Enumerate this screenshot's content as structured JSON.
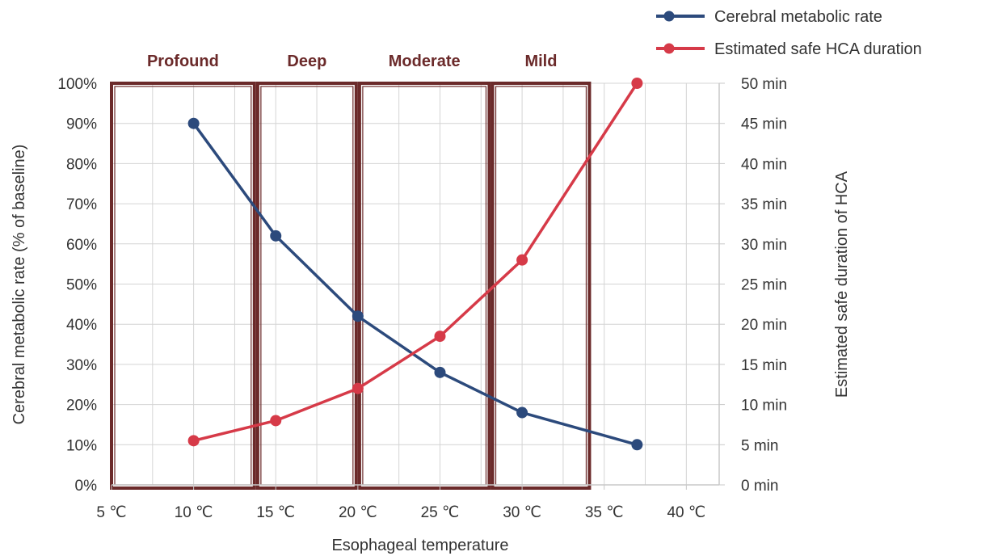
{
  "chart_data": {
    "type": "line",
    "xlabel": "Esophageal temperature",
    "ylabel": "Cerebral metabolic rate (% of baseline)",
    "y2label": "Estimated safe duration of HCA",
    "xlim": [
      5,
      42
    ],
    "ylim": [
      0,
      100
    ],
    "y2lim": [
      0,
      50
    ],
    "x_ticks": [
      5,
      10,
      15,
      20,
      25,
      30,
      35,
      40
    ],
    "x_tick_labels": [
      "5 ℃",
      "10 ℃",
      "15 ℃",
      "20 ℃",
      "25 ℃",
      "30 ℃",
      "35 ℃",
      "40 ℃"
    ],
    "y_ticks": [
      0,
      10,
      20,
      30,
      40,
      50,
      60,
      70,
      80,
      90,
      100
    ],
    "y_tick_labels": [
      "0%",
      "10%",
      "20%",
      "30%",
      "40%",
      "50%",
      "60%",
      "70%",
      "80%",
      "90%",
      "100%"
    ],
    "y2_ticks": [
      0,
      5,
      10,
      15,
      20,
      25,
      30,
      35,
      40,
      45,
      50
    ],
    "y2_tick_labels": [
      "0 min",
      "5 min",
      "10 min",
      "15 min",
      "20 min",
      "25 min",
      "30 min",
      "35 min",
      "40 min",
      "45 min",
      "50 min"
    ],
    "grid": true,
    "legend": "top-right",
    "series": [
      {
        "name": "Cerebral metabolic rate",
        "axis": "left",
        "color": "#2c4a7c",
        "x": [
          10,
          15,
          20,
          25,
          30,
          37
        ],
        "y": [
          90,
          62,
          42,
          28,
          18,
          10
        ]
      },
      {
        "name": "Estimated safe HCA duration",
        "axis": "right",
        "color": "#d63a48",
        "x": [
          10,
          15,
          20,
          25,
          30,
          37
        ],
        "y": [
          5.5,
          8,
          12,
          18.5,
          28,
          50
        ]
      }
    ],
    "regions": [
      {
        "label": "Profound",
        "from": 5,
        "to": 13.7
      },
      {
        "label": "Deep",
        "from": 13.9,
        "to": 19.9
      },
      {
        "label": "Moderate",
        "from": 20.1,
        "to": 28
      },
      {
        "label": "Mild",
        "from": 28.2,
        "to": 34.1
      }
    ],
    "colors": {
      "region_border": "#6b2a2a",
      "region_label": "#6b2a2a",
      "grid": "#d4d4d4",
      "axis": "#c8c8c8",
      "text": "#333333"
    }
  }
}
